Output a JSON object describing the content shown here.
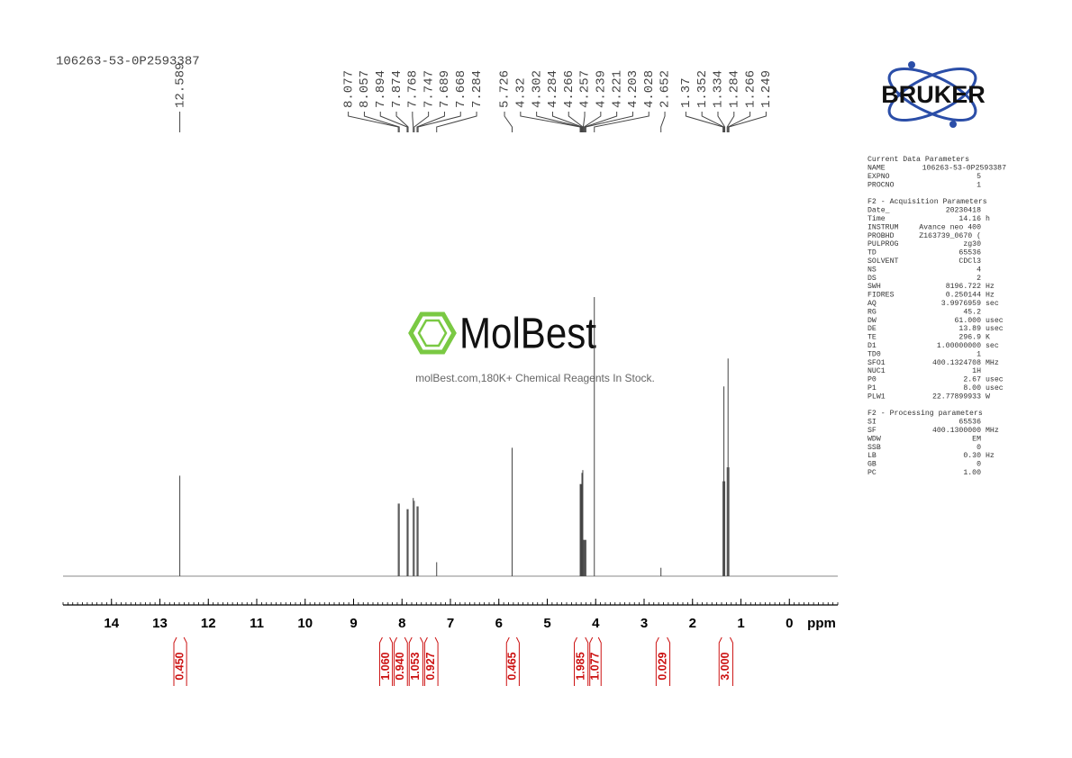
{
  "chart_data": {
    "type": "nmr",
    "title": "106263-53-0P2593387",
    "xlabel": "ppm",
    "xlim": [
      15,
      -1
    ],
    "xticks": [
      14,
      13,
      12,
      11,
      10,
      9,
      8,
      7,
      6,
      5,
      4,
      3,
      2,
      1,
      0
    ],
    "xminor": 0.1,
    "ylim": [
      0,
      100
    ],
    "color": "#444444",
    "peaks": {
      "ppm": [
        12.589,
        8.077,
        8.057,
        7.894,
        7.874,
        7.768,
        7.747,
        7.689,
        7.668,
        7.284,
        5.726,
        4.32,
        4.302,
        4.284,
        4.266,
        4.257,
        4.239,
        4.221,
        4.203,
        4.028,
        2.652,
        1.37,
        1.352,
        1.334,
        1.284,
        1.266,
        1.249
      ],
      "heights": [
        36,
        26,
        26,
        24,
        24,
        28,
        27,
        25,
        25,
        5,
        46,
        33,
        33,
        37,
        38,
        13,
        13,
        13,
        13,
        100,
        3,
        34,
        68,
        34,
        39,
        78,
        39
      ]
    },
    "integral_color": "#cc1111",
    "integrals": [
      {
        "from": 12.73,
        "to": 12.43,
        "value": 0.45,
        "label": "0.450"
      },
      {
        "from": 8.48,
        "to": 8.18,
        "value": 1.06,
        "label": "1.060"
      },
      {
        "from": 8.18,
        "to": 7.87,
        "value": 0.94,
        "label": "0.940"
      },
      {
        "from": 7.87,
        "to": 7.55,
        "value": 1.053
      },
      {
        "from": 7.55,
        "to": 7.24,
        "value": 0.927
      },
      {
        "from": 5.86,
        "to": 5.56,
        "value": 0.465
      },
      {
        "from": 4.46,
        "to": 4.14,
        "value": 1.985
      },
      {
        "from": 4.14,
        "to": 3.87,
        "value": 1.077
      },
      {
        "from": 2.77,
        "to": 2.45,
        "value": 0.029
      },
      {
        "from": 1.47,
        "to": 1.15,
        "value": 3,
        "label": "3.000"
      }
    ]
  },
  "logo": {
    "brand": "BRUKER"
  },
  "watermark": {
    "name": "MolBest",
    "tagline": "molBest.com,180K+ Chemical Reagents In Stock."
  },
  "parameters": [
    {
      "title": "Current Data Parameters",
      "rows": [
        [
          "NAME",
          "106263-53-0P2593387"
        ],
        [
          "EXPNO",
          "5"
        ],
        [
          "PROCNO",
          "1"
        ]
      ]
    },
    {
      "title": "F2 - Acquisition Parameters",
      "rows": [
        [
          "Date_",
          "20230418"
        ],
        [
          "Time",
          "14.16",
          "h"
        ],
        [
          "INSTRUM",
          "Avance neo 400"
        ],
        [
          "PROBHD",
          "Z163739_0670 ("
        ],
        [
          "PULPROG",
          "zg30"
        ],
        [
          "TD",
          "65536"
        ],
        [
          "SOLVENT",
          "CDCl3"
        ],
        [
          "NS",
          "4"
        ],
        [
          "DS",
          "2"
        ],
        [
          "SWH",
          "8196.722",
          "Hz"
        ],
        [
          "FIDRES",
          "0.250144",
          "Hz"
        ],
        [
          "AQ",
          "3.9976959",
          "sec"
        ],
        [
          "RG",
          "45.2"
        ],
        [
          "DW",
          "61.000",
          "usec"
        ],
        [
          "DE",
          "13.89",
          "usec"
        ],
        [
          "TE",
          "296.9",
          "K"
        ],
        [
          "D1",
          "1.00000000",
          "sec"
        ],
        [
          "TD0",
          "1"
        ],
        [
          "SFO1",
          "400.1324708",
          "MHz"
        ],
        [
          "NUC1",
          "1H"
        ],
        [
          "P0",
          "2.67",
          "usec"
        ],
        [
          "P1",
          "8.00",
          "usec"
        ],
        [
          "PLW1",
          "22.77899933",
          "W"
        ]
      ]
    },
    {
      "title": "F2 - Processing parameters",
      "rows": [
        [
          "SI",
          "65536"
        ],
        [
          "SF",
          "400.1300000",
          "MHz"
        ],
        [
          "WDW",
          "EM"
        ],
        [
          "SSB",
          "0"
        ],
        [
          "LB",
          "0.30",
          "Hz"
        ],
        [
          "GB",
          "0"
        ],
        [
          "PC",
          "1.00"
        ]
      ]
    }
  ]
}
